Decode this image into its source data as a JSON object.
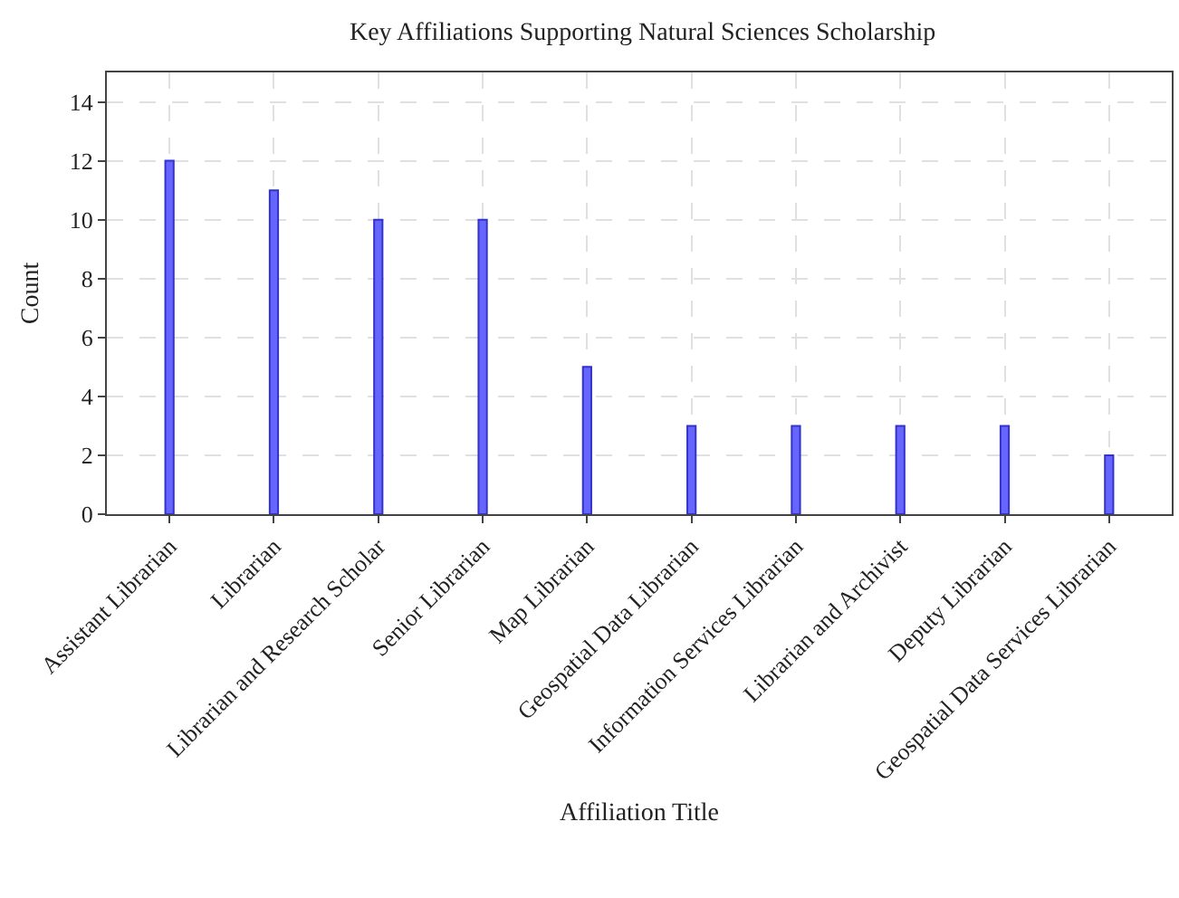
{
  "chart_data": {
    "type": "bar",
    "title": "Key Affiliations Supporting Natural Sciences Scholarship",
    "xlabel": "Affiliation Title",
    "ylabel": "Count",
    "categories": [
      "Assistant Librarian",
      "Librarian",
      "Librarian and Research Scholar",
      "Senior Librarian",
      "Map Librarian",
      "Geospatial Data Librarian",
      "Information Services Librarian",
      "Librarian and Archivist",
      "Deputy Librarian",
      "Geospatial Data Services Librarian"
    ],
    "values": [
      12,
      11,
      10,
      10,
      5,
      3,
      3,
      3,
      3,
      2
    ],
    "color": "#6666ff",
    "ylim": [
      0,
      15
    ],
    "yticks": [
      0,
      2,
      4,
      6,
      8,
      10,
      12,
      14
    ],
    "grid": true
  }
}
